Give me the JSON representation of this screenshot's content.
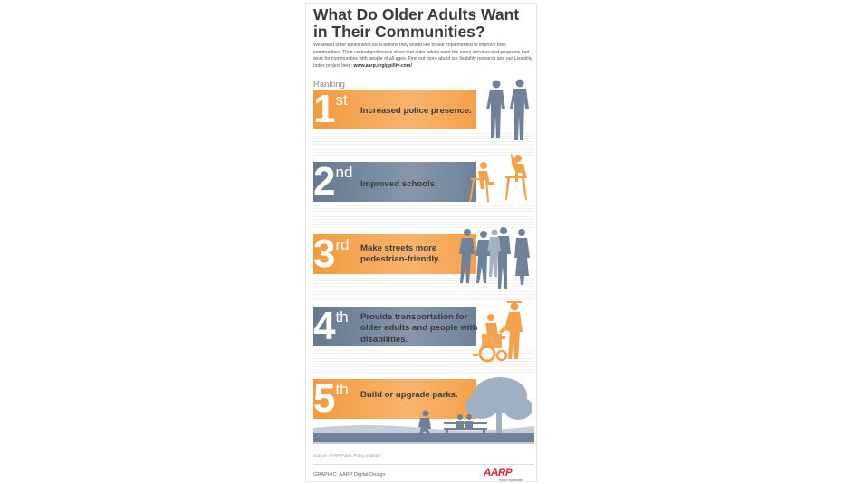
{
  "title": "What Do Older Adults Want in Their Communities?",
  "intro": "We asked older adults what local actions they would like to see implemented to improve their communities. Their ranked preference show that older adults want the same services and programs that work for communities with people of all ages. Find out more about our livability research and our Livability Index project here: ",
  "intro_link": "www.aarp.org/ppi/liv-com/",
  "ranking_label": "Ranking",
  "ranks": [
    {
      "num": "1",
      "suffix": "st",
      "label": "Increased police presence.",
      "color": "#f5a04a"
    },
    {
      "num": "2",
      "suffix": "nd",
      "label": "Improved schools.",
      "color": "#6f8298"
    },
    {
      "num": "3",
      "suffix": "rd",
      "label": "Make streets more pedestrian-friendly.",
      "color": "#f5a04a"
    },
    {
      "num": "4",
      "suffix": "th",
      "label": "Provide transportation for older adults and people with disabilities.",
      "color": "#6f8298"
    },
    {
      "num": "5",
      "suffix": "th",
      "label": "Build or upgrade parks.",
      "color": "#f5a04a"
    }
  ],
  "icons": [
    "police-officers-icon",
    "students-at-desks-icon",
    "pedestrians-icon",
    "wheelchair-icon",
    "park-bench-tree-icon"
  ],
  "source": "Source: AARP Public Policy Institute",
  "graphic_credit": "GRAPHIC: AARP Digital Design",
  "logo": {
    "name": "AARP",
    "tagline": "Real Possibilities"
  },
  "colors": {
    "orange": "#f5a04a",
    "slate": "#6f8298",
    "logo_red": "#e8202a"
  }
}
